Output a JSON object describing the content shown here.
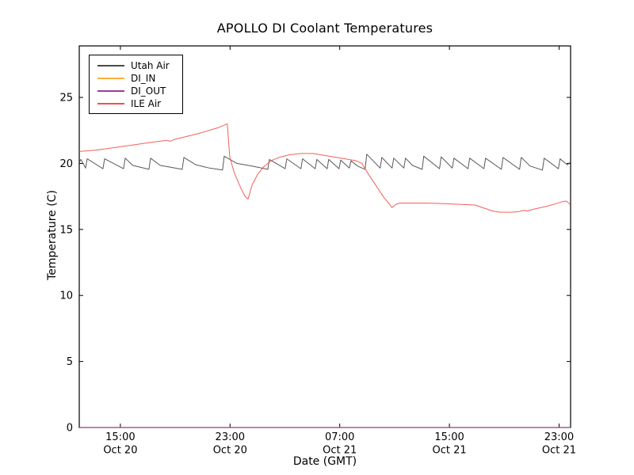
{
  "figure": {
    "title": "APOLLO DI Coolant Temperatures",
    "background_color": "#ffffff",
    "axis_color": "#000000"
  },
  "chart_data": {
    "type": "line",
    "title": "APOLLO DI Coolant Temperatures",
    "xlabel": "Date (GMT)",
    "ylabel": "Temperature (C)",
    "grid": false,
    "legend_position": "upper left",
    "x_unit": "hours since ~12:00 Oct 20 GMT",
    "xlim_hours": [
      0,
      35.84
    ],
    "ylim": [
      0,
      28.9
    ],
    "yticks": [
      0,
      5,
      10,
      15,
      20,
      25
    ],
    "xticks": [
      {
        "h": 3,
        "time": "15:00",
        "date": "Oct 20"
      },
      {
        "h": 11,
        "time": "23:00",
        "date": "Oct 20"
      },
      {
        "h": 19,
        "time": "07:00",
        "date": "Oct 21"
      },
      {
        "h": 27,
        "time": "15:00",
        "date": "Oct 21"
      },
      {
        "h": 35,
        "time": "23:00",
        "date": "Oct 21"
      }
    ],
    "series": [
      {
        "name": "Utah Air",
        "color": "#4a4a4a",
        "points": [
          [
            0,
            20.1
          ],
          [
            0.12,
            20.3
          ],
          [
            0.46,
            19.65
          ],
          [
            0.58,
            20.35
          ],
          [
            1.73,
            19.6
          ],
          [
            1.85,
            20.35
          ],
          [
            3.23,
            19.6
          ],
          [
            3.35,
            20.4
          ],
          [
            3.9,
            19.85
          ],
          [
            5.08,
            19.55
          ],
          [
            5.2,
            20.4
          ],
          [
            5.9,
            19.85
          ],
          [
            7.51,
            19.55
          ],
          [
            7.63,
            20.45
          ],
          [
            8.5,
            19.9
          ],
          [
            9.5,
            19.65
          ],
          [
            10.45,
            19.5
          ],
          [
            10.57,
            20.55
          ],
          [
            11.5,
            20.0
          ],
          [
            12.6,
            19.8
          ],
          [
            13.75,
            19.55
          ],
          [
            13.87,
            20.3
          ],
          [
            15.02,
            19.6
          ],
          [
            15.14,
            20.35
          ],
          [
            16.17,
            19.6
          ],
          [
            16.29,
            20.35
          ],
          [
            17.21,
            19.6
          ],
          [
            17.33,
            20.3
          ],
          [
            18.08,
            19.6
          ],
          [
            18.2,
            20.3
          ],
          [
            18.95,
            19.6
          ],
          [
            19.07,
            20.25
          ],
          [
            19.7,
            19.65
          ],
          [
            19.82,
            20.2
          ],
          [
            20.3,
            19.8
          ],
          [
            20.85,
            19.55
          ],
          [
            20.97,
            20.7
          ],
          [
            21.95,
            19.65
          ],
          [
            22.07,
            20.45
          ],
          [
            22.82,
            19.65
          ],
          [
            22.94,
            20.4
          ],
          [
            23.68,
            19.65
          ],
          [
            23.8,
            20.4
          ],
          [
            24.3,
            19.85
          ],
          [
            25.01,
            19.55
          ],
          [
            25.13,
            20.55
          ],
          [
            26.28,
            19.6
          ],
          [
            26.4,
            20.5
          ],
          [
            27.21,
            19.65
          ],
          [
            27.33,
            20.4
          ],
          [
            28.36,
            19.6
          ],
          [
            28.48,
            20.4
          ],
          [
            29.52,
            19.6
          ],
          [
            29.64,
            20.4
          ],
          [
            30.79,
            19.55
          ],
          [
            30.91,
            20.45
          ],
          [
            32.12,
            19.55
          ],
          [
            32.24,
            20.45
          ],
          [
            32.9,
            19.8
          ],
          [
            33.79,
            19.5
          ],
          [
            33.91,
            20.4
          ],
          [
            34.95,
            19.6
          ],
          [
            35.07,
            20.35
          ],
          [
            35.6,
            19.9
          ],
          [
            35.84,
            20.1
          ]
        ]
      },
      {
        "name": "DI_IN",
        "color": "#ffae3c",
        "points": [
          [
            0,
            0
          ],
          [
            35.84,
            0
          ]
        ]
      },
      {
        "name": "DI_OUT",
        "color": "#9a3d9a",
        "points": [
          [
            0,
            0
          ],
          [
            35.84,
            0
          ]
        ]
      },
      {
        "name": "ILE Air",
        "color": "#f0524c",
        "points": [
          [
            0,
            20.9
          ],
          [
            1.16,
            21.0
          ],
          [
            2.89,
            21.25
          ],
          [
            4.62,
            21.5
          ],
          [
            6.35,
            21.75
          ],
          [
            6.64,
            21.68
          ],
          [
            6.93,
            21.82
          ],
          [
            8.66,
            22.25
          ],
          [
            10.11,
            22.7
          ],
          [
            10.8,
            23.0
          ],
          [
            10.98,
            20.5
          ],
          [
            11.3,
            19.3
          ],
          [
            11.8,
            18.1
          ],
          [
            12.1,
            17.5
          ],
          [
            12.31,
            17.3
          ],
          [
            12.6,
            18.35
          ],
          [
            13.0,
            19.15
          ],
          [
            13.46,
            19.75
          ],
          [
            13.98,
            20.2
          ],
          [
            14.56,
            20.45
          ],
          [
            15.31,
            20.65
          ],
          [
            16.17,
            20.75
          ],
          [
            17.04,
            20.75
          ],
          [
            17.91,
            20.6
          ],
          [
            18.77,
            20.45
          ],
          [
            19.64,
            20.3
          ],
          [
            20.22,
            20.2
          ],
          [
            20.62,
            20.0
          ],
          [
            21.08,
            19.2
          ],
          [
            21.66,
            18.3
          ],
          [
            22.24,
            17.4
          ],
          [
            22.64,
            16.9
          ],
          [
            22.81,
            16.65
          ],
          [
            23.1,
            16.9
          ],
          [
            23.39,
            17.0
          ],
          [
            24.26,
            17.0
          ],
          [
            25.42,
            17.0
          ],
          [
            26.57,
            16.95
          ],
          [
            27.73,
            16.9
          ],
          [
            28.88,
            16.85
          ],
          [
            29.57,
            16.6
          ],
          [
            30.15,
            16.4
          ],
          [
            30.73,
            16.3
          ],
          [
            31.48,
            16.3
          ],
          [
            32.06,
            16.35
          ],
          [
            32.46,
            16.45
          ],
          [
            32.64,
            16.4
          ],
          [
            33.21,
            16.55
          ],
          [
            34.08,
            16.75
          ],
          [
            34.77,
            16.95
          ],
          [
            35.23,
            17.1
          ],
          [
            35.52,
            17.15
          ],
          [
            35.81,
            16.9
          ]
        ]
      }
    ]
  }
}
